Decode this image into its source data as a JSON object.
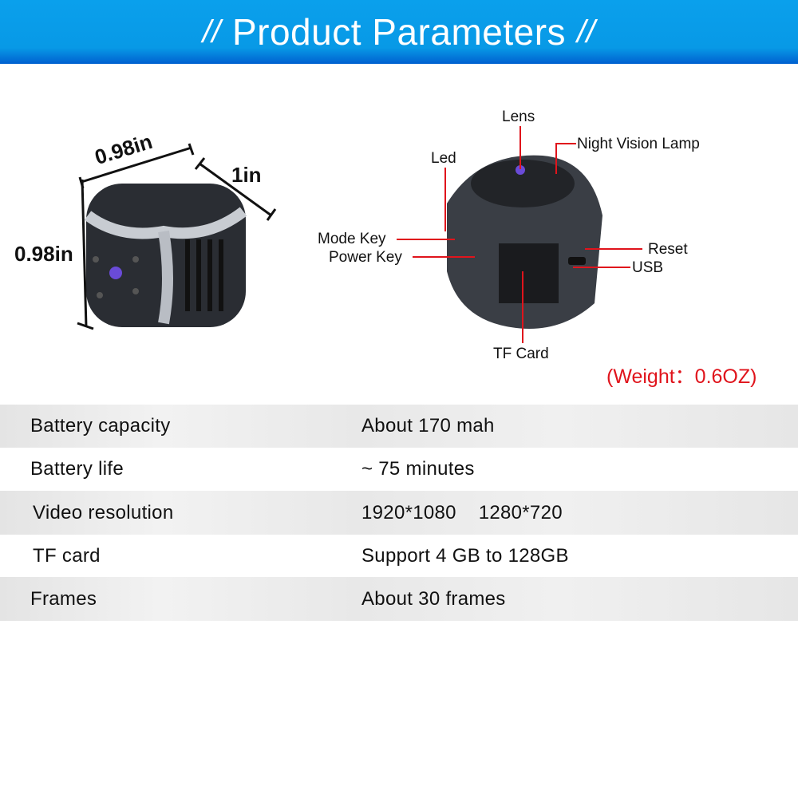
{
  "banner": {
    "title": "Product Parameters",
    "left_deco": "//",
    "right_deco": "//"
  },
  "dimensions": {
    "width": "0.98in",
    "depth": "1in",
    "height": "0.98in"
  },
  "callouts": {
    "lens": "Lens",
    "night_vision": "Night Vision Lamp",
    "led": "Led",
    "mode_key": "Mode Key",
    "power_key": "Power Key",
    "reset": "Reset",
    "usb": "USB",
    "tf_card": "TF Card"
  },
  "weight": "(Weight：0.6OZ)",
  "colors": {
    "banner": "#0899e6",
    "callout_line": "#e0141c",
    "weight": "#e0141c"
  },
  "specs": [
    {
      "key": "Battery capacity",
      "value": "About 170 mah"
    },
    {
      "key": "Battery life",
      "value": "~ 75 minutes"
    },
    {
      "key": "Video resolution",
      "value": "1920*1080    1280*720"
    },
    {
      "key": "TF card",
      "value": "Support 4 GB to 128GB"
    },
    {
      "key": "Frames",
      "value": "About 30 frames"
    }
  ]
}
